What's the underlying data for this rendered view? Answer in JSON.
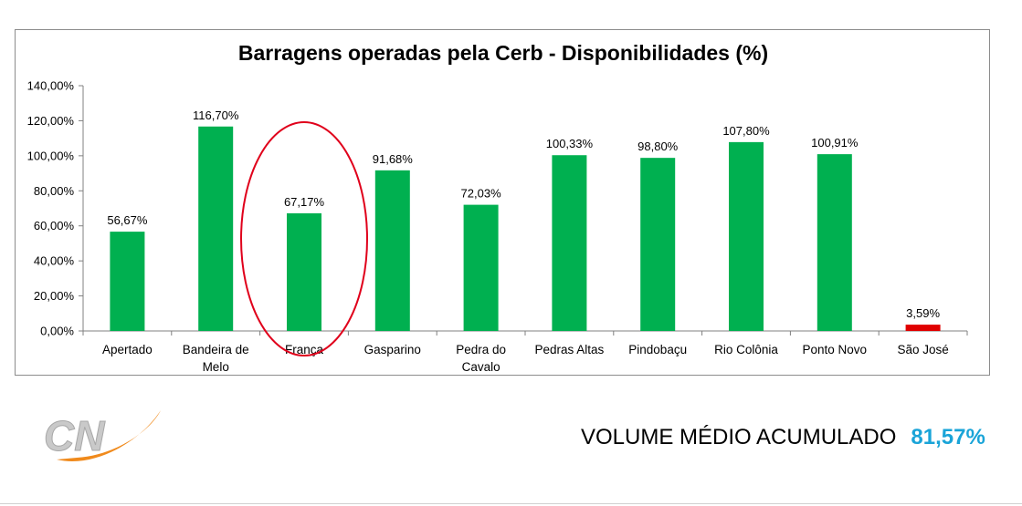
{
  "chart_data": {
    "type": "bar",
    "title": "Barragens operadas pela Cerb - Disponibilidades (%)",
    "xlabel": "",
    "ylabel": "",
    "ylim": [
      0,
      140
    ],
    "yticks": [
      "0,00%",
      "20,00%",
      "40,00%",
      "60,00%",
      "80,00%",
      "100,00%",
      "120,00%",
      "140,00%"
    ],
    "categories": [
      "Apertado",
      "Bandeira de Melo",
      "França",
      "Gasparino",
      "Pedra do Cavalo",
      "Pedras Altas",
      "Pindobaçu",
      "Rio Colônia",
      "Ponto Novo",
      "São José"
    ],
    "category_lines": [
      [
        "Apertado"
      ],
      [
        "Bandeira de",
        "Melo"
      ],
      [
        "França"
      ],
      [
        "Gasparino"
      ],
      [
        "Pedra do",
        "Cavalo"
      ],
      [
        "Pedras Altas"
      ],
      [
        "Pindobaçu"
      ],
      [
        "Rio Colônia"
      ],
      [
        "Ponto Novo"
      ],
      [
        "São José"
      ]
    ],
    "values": [
      56.67,
      116.7,
      67.17,
      91.68,
      72.03,
      100.33,
      98.8,
      107.8,
      100.91,
      3.59
    ],
    "value_labels": [
      "56,67%",
      "116,70%",
      "67,17%",
      "91,68%",
      "72,03%",
      "100,33%",
      "98,80%",
      "107,80%",
      "100,91%",
      "3,59%"
    ],
    "bar_colors": [
      "#00b050",
      "#00b050",
      "#00b050",
      "#00b050",
      "#00b050",
      "#00b050",
      "#00b050",
      "#00b050",
      "#00b050",
      "#e00000"
    ],
    "highlighted_category": "França",
    "highlight_color": "#e0001b",
    "grid": false,
    "legend": "none"
  },
  "footer": {
    "label": "VOLUME MÉDIO ACUMULADO",
    "value": "81,57%",
    "value_color": "#1aa4d8"
  },
  "logo": {
    "text": "CN",
    "colors": {
      "letters": "#c9c9c9",
      "swoosh": "#f08a1c"
    }
  }
}
